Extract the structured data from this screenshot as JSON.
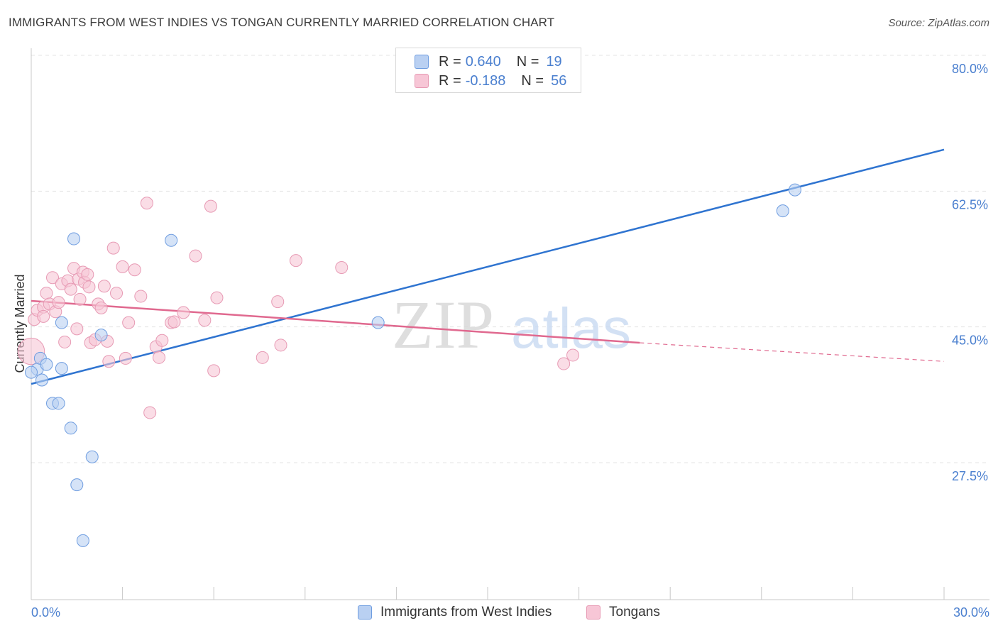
{
  "title": "IMMIGRANTS FROM WEST INDIES VS TONGAN CURRENTLY MARRIED CORRELATION CHART",
  "source": "Source: ZipAtlas.com",
  "watermark": {
    "zip": "ZIP",
    "atlas": "atlas"
  },
  "colors": {
    "blue_fill": "#b9d0f2",
    "blue_stroke": "#6f9de0",
    "blue_line": "#2f74d0",
    "pink_fill": "#f7c6d6",
    "pink_stroke": "#e79ab4",
    "pink_line": "#e0698f",
    "tick_text": "#4a7fcf",
    "grid": "#e3e3e3"
  },
  "legend_top": [
    {
      "r_label": "R =",
      "r_value": "0.640",
      "n_label": "N =",
      "n_value": "19"
    },
    {
      "r_label": "R =",
      "r_value": "-0.188",
      "n_label": "N =",
      "n_value": "56"
    }
  ],
  "legend_bottom": [
    "Immigrants from West Indies",
    "Tongans"
  ],
  "chart_data": {
    "type": "scatter",
    "title": "IMMIGRANTS FROM WEST INDIES VS TONGAN CURRENTLY MARRIED CORRELATION CHART",
    "xlabel": "",
    "ylabel": "Currently Married",
    "xlim": [
      0,
      30
    ],
    "ylim": [
      12.5,
      83
    ],
    "x_ticks": [
      "0.0%",
      "30.0%"
    ],
    "y_ticks": [
      {
        "value": 80,
        "label": "80.0%"
      },
      {
        "value": 62.5,
        "label": "62.5%"
      },
      {
        "value": 45,
        "label": "45.0%"
      },
      {
        "value": 27.5,
        "label": "27.5%"
      }
    ],
    "grid": "horizontal dashed",
    "series": [
      {
        "name": "Immigrants from West Indies",
        "r": 0.64,
        "n": 19,
        "trend": {
          "x0": 0,
          "y0": 39.3,
          "x1": 30,
          "y1": 69.5,
          "dashed_from": null
        },
        "points": [
          [
            0.2,
            41.2,
            1
          ],
          [
            0.3,
            42.6,
            1
          ],
          [
            0.35,
            39.8,
            1
          ],
          [
            0.5,
            41.8,
            1
          ],
          [
            1.0,
            41.3,
            1
          ],
          [
            0.7,
            36.8,
            1
          ],
          [
            0.9,
            36.8,
            1
          ],
          [
            1.0,
            47.2,
            1
          ],
          [
            1.3,
            33.6,
            1
          ],
          [
            1.4,
            58.0,
            1
          ],
          [
            1.5,
            26.3,
            1
          ],
          [
            1.7,
            19.1,
            1
          ],
          [
            2.0,
            29.9,
            1
          ],
          [
            2.3,
            45.6,
            1
          ],
          [
            4.6,
            57.8,
            1
          ],
          [
            11.4,
            47.2,
            1
          ],
          [
            24.7,
            61.6,
            1
          ],
          [
            25.1,
            64.3,
            1
          ],
          [
            0.0,
            40.8,
            1
          ]
        ]
      },
      {
        "name": "Tongans",
        "r": -0.188,
        "n": 56,
        "trend": {
          "x0": 0,
          "y0": 50.0,
          "x1": 20,
          "y1": 44.6,
          "x2": 30,
          "y2": 42.2,
          "dashed_from": 20
        },
        "points": [
          [
            0.0,
            43.5,
            2.2
          ],
          [
            0.1,
            47.6,
            1
          ],
          [
            0.2,
            48.8,
            1
          ],
          [
            0.4,
            49.2,
            1
          ],
          [
            0.4,
            48.0,
            1
          ],
          [
            0.5,
            51.0,
            1
          ],
          [
            0.6,
            49.6,
            1
          ],
          [
            0.7,
            53.0,
            1
          ],
          [
            0.8,
            48.6,
            1
          ],
          [
            0.9,
            49.8,
            1
          ],
          [
            1.0,
            52.2,
            1
          ],
          [
            1.1,
            44.7,
            1
          ],
          [
            1.2,
            52.6,
            1
          ],
          [
            1.4,
            54.2,
            1
          ],
          [
            1.5,
            46.4,
            1
          ],
          [
            1.55,
            52.8,
            1
          ],
          [
            1.6,
            50.2,
            1
          ],
          [
            1.7,
            53.7,
            1
          ],
          [
            1.75,
            52.4,
            1
          ],
          [
            1.85,
            53.4,
            1
          ],
          [
            1.9,
            51.8,
            1
          ],
          [
            1.95,
            44.6,
            1
          ],
          [
            2.1,
            45.0,
            1
          ],
          [
            2.2,
            49.6,
            1
          ],
          [
            2.3,
            49.1,
            1
          ],
          [
            2.4,
            51.9,
            1
          ],
          [
            2.5,
            44.8,
            1
          ],
          [
            2.55,
            42.2,
            1
          ],
          [
            2.7,
            56.8,
            1
          ],
          [
            2.8,
            51.0,
            1
          ],
          [
            3.0,
            54.4,
            1
          ],
          [
            3.1,
            42.6,
            1
          ],
          [
            3.2,
            47.2,
            1
          ],
          [
            3.4,
            54.0,
            1
          ],
          [
            3.6,
            50.6,
            1
          ],
          [
            3.8,
            62.6,
            1
          ],
          [
            3.9,
            35.6,
            1
          ],
          [
            4.1,
            44.1,
            1
          ],
          [
            4.2,
            42.7,
            1
          ],
          [
            4.3,
            44.9,
            1
          ],
          [
            4.6,
            47.2,
            1
          ],
          [
            4.7,
            47.3,
            1
          ],
          [
            5.0,
            48.5,
            1
          ],
          [
            5.4,
            55.8,
            1
          ],
          [
            5.7,
            47.5,
            1
          ],
          [
            5.9,
            62.2,
            1
          ],
          [
            6.0,
            41.0,
            1
          ],
          [
            6.1,
            50.4,
            1
          ],
          [
            7.6,
            42.7,
            1
          ],
          [
            8.1,
            49.9,
            1
          ],
          [
            8.2,
            44.3,
            1
          ],
          [
            8.7,
            55.2,
            1
          ],
          [
            10.2,
            54.3,
            1
          ],
          [
            17.5,
            41.9,
            1
          ],
          [
            17.8,
            43.0,
            1
          ],
          [
            1.3,
            51.5,
            1
          ]
        ]
      }
    ]
  }
}
